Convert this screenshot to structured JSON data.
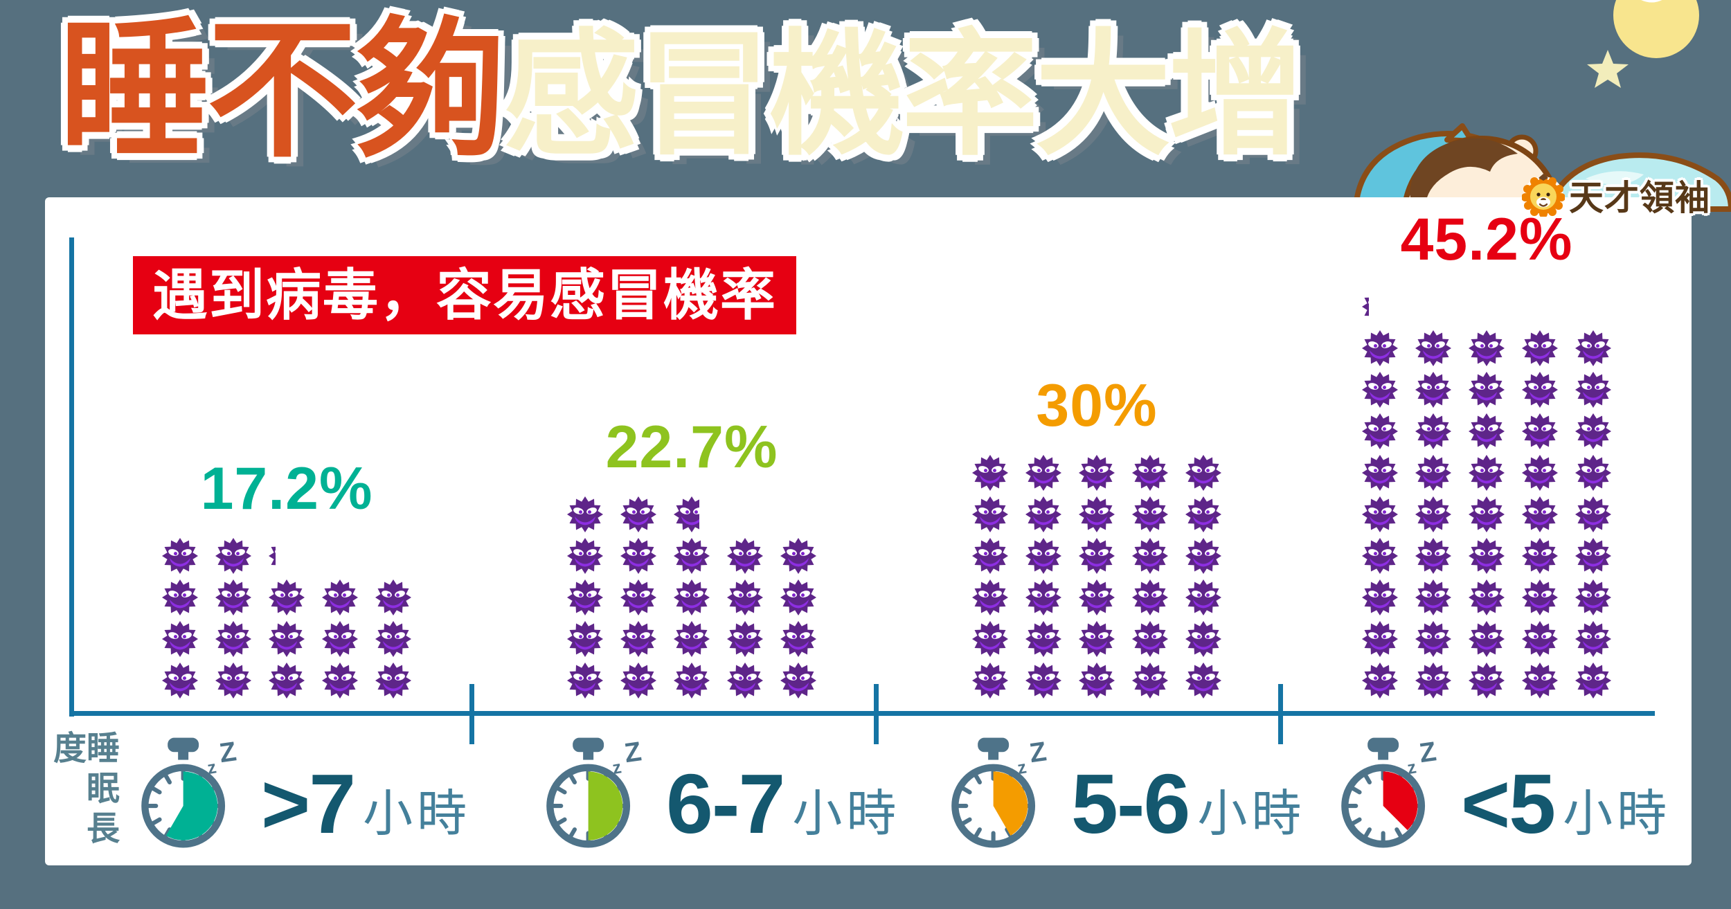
{
  "page": {
    "background_color": "#56707f",
    "card_color": "#ffffff"
  },
  "title": {
    "highlight": "睡不夠",
    "rest": "感冒機率大增",
    "highlight_color": "#d8531f",
    "rest_color": "#f7f0c9"
  },
  "logo": {
    "text": "天才領袖"
  },
  "banner": {
    "text": "遇到病毒，容易感冒機率",
    "bg_color": "#e60012",
    "text_color": "#ffffff"
  },
  "axis": {
    "label": "睡眠長度",
    "color": "#1574a4"
  },
  "stopwatch": {
    "zz_text": "zZ",
    "body_color": "#4e7389"
  },
  "virus_icon": {
    "body_color": "#5e2589",
    "mouth_color": "#8d2ee2",
    "eye_color": "#ffffff",
    "pupil_color": "#7e22cc"
  },
  "chart_data": {
    "type": "pictograph-bar",
    "title": "遇到病毒，容易感冒機率",
    "x_axis_label": "睡眠長度",
    "unit_per_icon_percent": 1,
    "columns_per_row": 5,
    "categories": [
      ">7小時",
      "6-7小時",
      "5-6小時",
      "<5小時"
    ],
    "values": [
      17.2,
      22.7,
      30,
      45.2
    ],
    "groups": [
      {
        "category_value": ">7",
        "category_unit": "小時",
        "percent": 17.2,
        "display": "17.2%",
        "color": "#00b194",
        "full_icons": 17,
        "partial_icon_fraction": 0.2,
        "clock_fill_deg": 210
      },
      {
        "category_value": "6-7",
        "category_unit": "小時",
        "percent": 22.7,
        "display": "22.7%",
        "color": "#8ec31f",
        "full_icons": 22,
        "partial_icon_fraction": 0.7,
        "clock_fill_deg": 180
      },
      {
        "category_value": "5-6",
        "category_unit": "小時",
        "percent": 30,
        "display": "30%",
        "color": "#f49c00",
        "full_icons": 30,
        "partial_icon_fraction": 0,
        "clock_fill_deg": 150
      },
      {
        "category_value": "<5",
        "category_unit": "小時",
        "percent": 45.2,
        "display": "45.2%",
        "color": "#e60012",
        "full_icons": 45,
        "partial_icon_fraction": 0.2,
        "clock_fill_deg": 135
      }
    ]
  }
}
